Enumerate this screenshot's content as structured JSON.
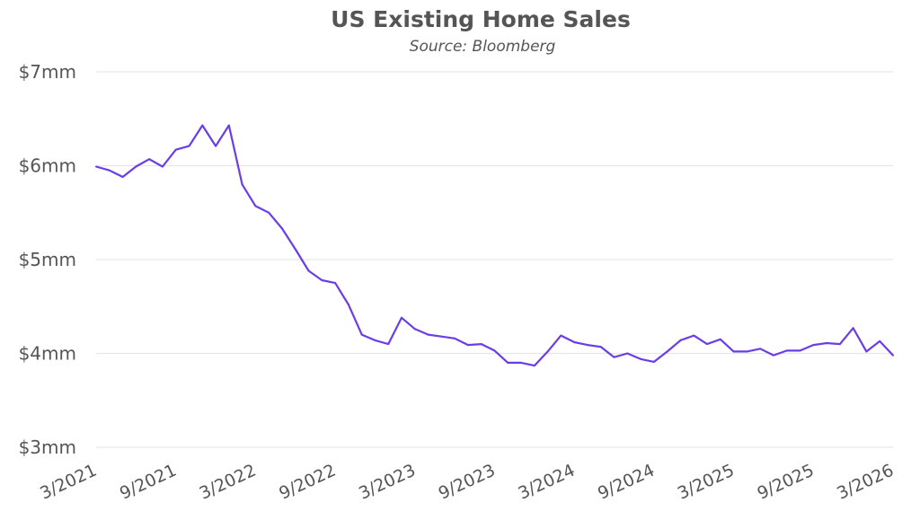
{
  "chart_data": {
    "type": "line",
    "title": "US Existing Home Sales",
    "subtitle": "Source: Bloomberg",
    "xlabel": "",
    "ylabel": "",
    "ylim": [
      3,
      7
    ],
    "yticks": [
      3,
      4,
      5,
      6,
      7
    ],
    "ytick_labels": [
      "$3mm",
      "$4mm",
      "$5mm",
      "$6mm",
      "$7mm"
    ],
    "xtick_labels": [
      "3/2021",
      "9/2021",
      "3/2022",
      "9/2022",
      "3/2023",
      "9/2023",
      "3/2024",
      "9/2024",
      "3/2025",
      "9/2025",
      "3/2026"
    ],
    "x_start": "3/2021",
    "x_end": "3/2026",
    "x_unit": "month",
    "grid": true,
    "legend": "none",
    "series": [
      {
        "name": "US Existing Home Sales",
        "color": "#6a3de8",
        "values": [
          5.99,
          5.95,
          5.88,
          5.99,
          6.07,
          5.99,
          6.17,
          6.21,
          6.43,
          6.21,
          6.43,
          5.8,
          5.57,
          5.5,
          5.33,
          5.11,
          4.88,
          4.78,
          4.75,
          4.52,
          4.2,
          4.14,
          4.1,
          4.38,
          4.26,
          4.2,
          4.18,
          4.16,
          4.09,
          4.1,
          4.03,
          3.9,
          3.9,
          3.87,
          4.02,
          4.19,
          4.12,
          4.09,
          4.07,
          3.96,
          4.0,
          3.94,
          3.91,
          4.02,
          4.14,
          4.19,
          4.1,
          4.15,
          4.02,
          4.02,
          4.05,
          3.98,
          4.03,
          4.03,
          4.09,
          4.11,
          4.1,
          4.27,
          4.02,
          4.13,
          3.98
        ]
      }
    ]
  }
}
